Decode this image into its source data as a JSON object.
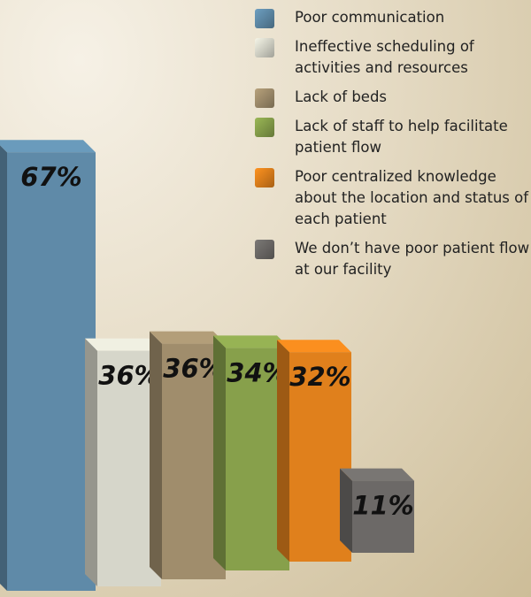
{
  "chart_data": {
    "type": "bar",
    "categories": [
      "Poor communication",
      "Ineffective scheduling of activities and resources",
      "Lack of beds",
      "Lack of staff to help facilitate patient flow",
      "Poor centralized knowledge about the location and status of each patient",
      "We don’t have poor patient flow at our facility"
    ],
    "values": [
      67,
      36,
      36,
      34,
      32,
      11
    ],
    "value_labels": [
      "67%",
      "36%",
      "36%",
      "34%",
      "32%",
      "11%"
    ],
    "colors": [
      "#5f8aa8",
      "#d6d6ca",
      "#a08d6c",
      "#87a04b",
      "#e0801c",
      "#6c6967"
    ]
  }
}
